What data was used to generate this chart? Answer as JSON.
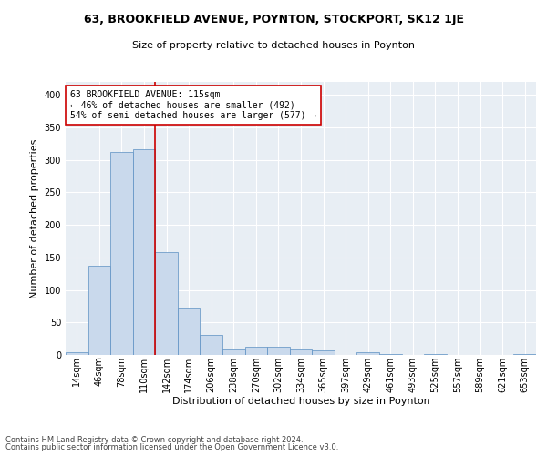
{
  "title1": "63, BROOKFIELD AVENUE, POYNTON, STOCKPORT, SK12 1JE",
  "title2": "Size of property relative to detached houses in Poynton",
  "xlabel": "Distribution of detached houses by size in Poynton",
  "ylabel": "Number of detached properties",
  "bar_labels": [
    "14sqm",
    "46sqm",
    "78sqm",
    "110sqm",
    "142sqm",
    "174sqm",
    "206sqm",
    "238sqm",
    "270sqm",
    "302sqm",
    "334sqm",
    "365sqm",
    "397sqm",
    "429sqm",
    "461sqm",
    "493sqm",
    "525sqm",
    "557sqm",
    "589sqm",
    "621sqm",
    "653sqm"
  ],
  "bar_values": [
    4,
    137,
    312,
    317,
    158,
    71,
    31,
    9,
    13,
    13,
    9,
    7,
    0,
    4,
    2,
    0,
    2,
    0,
    0,
    0,
    2
  ],
  "bar_color": "#c9d9ec",
  "bar_edge_color": "#5a8fc2",
  "bg_color": "#e8eef4",
  "annotation_line1": "63 BROOKFIELD AVENUE: 115sqm",
  "annotation_line2": "← 46% of detached houses are smaller (492)",
  "annotation_line3": "54% of semi-detached houses are larger (577) →",
  "annotation_box_color": "#ffffff",
  "annotation_box_edge": "#cc0000",
  "redline_bin": 3,
  "ylim": [
    0,
    420
  ],
  "yticks": [
    0,
    50,
    100,
    150,
    200,
    250,
    300,
    350,
    400
  ],
  "title1_fontsize": 9,
  "title2_fontsize": 8,
  "xlabel_fontsize": 8,
  "ylabel_fontsize": 8,
  "tick_fontsize": 7,
  "ann_fontsize": 7,
  "footer1": "Contains HM Land Registry data © Crown copyright and database right 2024.",
  "footer2": "Contains public sector information licensed under the Open Government Licence v3.0.",
  "footer_fontsize": 6
}
